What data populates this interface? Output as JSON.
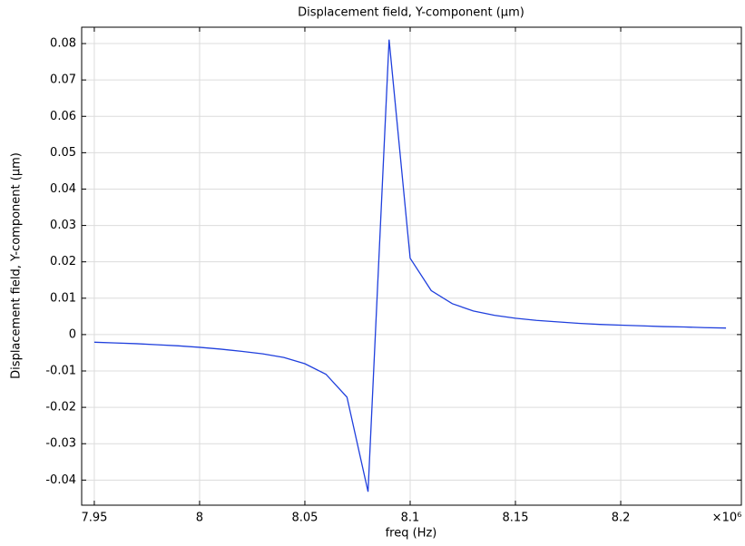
{
  "chart_data": {
    "type": "line",
    "title": "Displacement field, Y-component (µm)",
    "x_label": "freq (Hz)",
    "y_label": "Displacement field, Y-component (µm)",
    "x_multiplier": "×10⁶",
    "x": [
      7.95,
      7.96,
      7.97,
      7.98,
      7.99,
      8.0,
      8.01,
      8.02,
      8.03,
      8.04,
      8.05,
      8.06,
      8.07,
      8.08,
      8.09,
      8.1,
      8.11,
      8.12,
      8.13,
      8.14,
      8.15,
      8.16,
      8.17,
      8.18,
      8.19,
      8.2,
      8.21,
      8.22,
      8.23,
      8.24,
      8.25
    ],
    "series": [
      {
        "color": "#1f3fdd",
        "values": [
          -0.0021,
          -0.0023,
          -0.0025,
          -0.0028,
          -0.0031,
          -0.0035,
          -0.004,
          -0.0046,
          -0.0053,
          -0.0063,
          -0.008,
          -0.0109,
          -0.0172,
          -0.0432,
          0.0811,
          0.021,
          0.0121,
          0.0085,
          0.0065,
          0.0053,
          0.0045,
          0.0039,
          0.0035,
          0.0031,
          0.0028,
          0.0026,
          0.0024,
          0.0022,
          0.0021,
          0.0019,
          0.0018
        ]
      }
    ],
    "xlim": [
      7.944,
      8.2573
    ],
    "ylim": [
      -0.0469,
      0.0845
    ],
    "xticks": [
      7.95,
      8,
      8.05,
      8.1,
      8.15,
      8.2
    ],
    "yticks": [
      -0.04,
      -0.03,
      -0.02,
      -0.01,
      0,
      0.01,
      0.02,
      0.03,
      0.04,
      0.05,
      0.06,
      0.07,
      0.08
    ],
    "grid": true
  }
}
